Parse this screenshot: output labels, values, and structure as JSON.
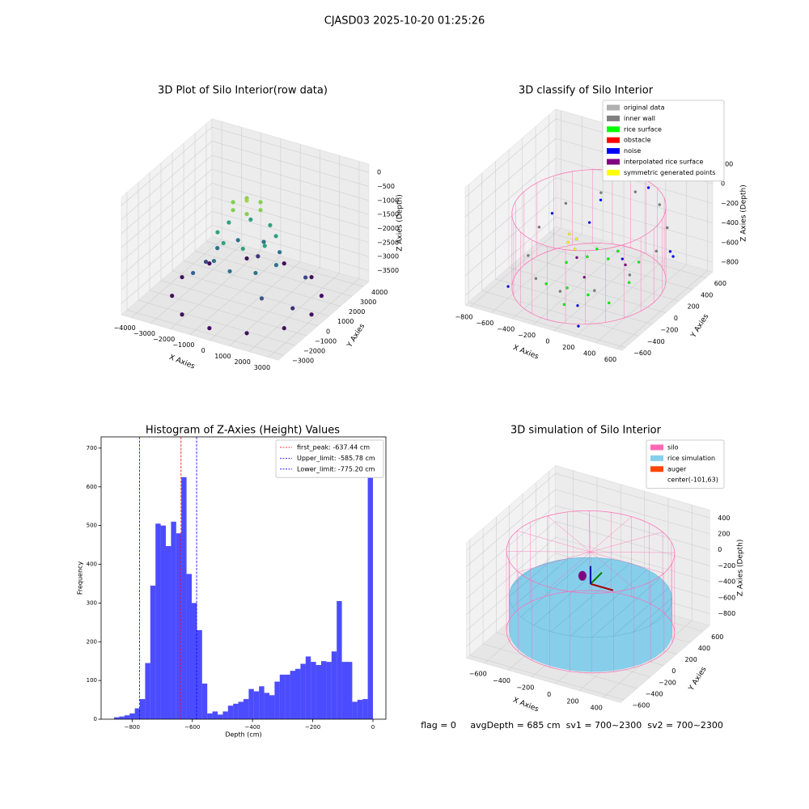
{
  "suptitle": "CJASD03 2025-10-20 01:25:26",
  "chart_data": [
    {
      "type": "scatter3d",
      "title": "3D Plot of Silo Interior(row data)",
      "xlabel": "X Axies",
      "ylabel": "Y Axies",
      "zlabel": "Z Axies (Depth)",
      "xlim": [
        -4500,
        3500
      ],
      "ylim": [
        -3500,
        4500
      ],
      "zlim": [
        -3900,
        300
      ],
      "xticks": [
        {
          "value": -4000,
          "label": "−4000"
        },
        {
          "value": -3000,
          "label": "−3000"
        },
        {
          "value": -2000,
          "label": "−2000"
        },
        {
          "value": -1000,
          "label": "−1000"
        },
        0,
        1000,
        2000,
        3000
      ],
      "yticks": [
        {
          "value": -3000,
          "label": "−3000"
        },
        {
          "value": -2000,
          "label": "−2000"
        },
        {
          "value": -1000,
          "label": "−1000"
        },
        0,
        1000,
        2000,
        3000,
        4000
      ],
      "zticks": [
        0,
        {
          "value": -500,
          "label": "−500"
        },
        {
          "value": -1000,
          "label": "−1000"
        },
        {
          "value": -1500,
          "label": "−1500"
        },
        {
          "value": -2000,
          "label": "−2000"
        },
        {
          "value": -2500,
          "label": "−2500"
        },
        {
          "value": -3000,
          "label": "−3000"
        },
        {
          "value": -3500,
          "label": "−3500"
        }
      ],
      "cmap": "viridis",
      "series": [
        {
          "x": [
            3000,
            2558,
            1350,
            -300,
            -1950,
            -3158,
            -3600,
            -3158,
            -1950,
            -300,
            1350,
            2558,
            1200,
            761,
            -300,
            -1361,
            -1800,
            -1361,
            -300,
            761,
            901,
            197,
            -797,
            -1501,
            -1501,
            -797,
            197,
            901,
            400,
            50,
            -650,
            -1000,
            -650,
            50,
            -300,
            2000,
            -2500,
            1500,
            -1000,
            2500,
            -2000
          ],
          "y": [
            300,
            1950,
            3158,
            3600,
            3158,
            1950,
            300,
            -1350,
            -2558,
            -3000,
            -2558,
            -1350,
            300,
            1361,
            1800,
            1361,
            300,
            -761,
            -1200,
            -761,
            797,
            1501,
            1501,
            797,
            -197,
            -901,
            -901,
            -197,
            300,
            906,
            906,
            300,
            -306,
            -306,
            300,
            1500,
            500,
            -1500,
            2500,
            -500,
            -1500
          ],
          "z": [
            -3700,
            -3700,
            -3700,
            -3700,
            -3700,
            -3700,
            -3700,
            -3700,
            -3700,
            -3700,
            -3700,
            -3700,
            -2300,
            -2300,
            -2300,
            -2300,
            -2300,
            -2300,
            -2300,
            -2300,
            -1500,
            -1500,
            -1500,
            -1500,
            -1500,
            -1500,
            -1500,
            -1500,
            -500,
            -500,
            -500,
            -500,
            -500,
            -500,
            -300,
            -3000,
            -3000,
            -2800,
            -3200,
            -3300,
            -2600
          ]
        }
      ]
    },
    {
      "type": "scatter3d",
      "title": "3D classify of Silo Interior",
      "xlabel": "X Axies",
      "ylabel": "Y Axies",
      "zlabel": "Z Axies (Depth)",
      "xlim": [
        -850,
        650
      ],
      "ylim": [
        -650,
        700
      ],
      "zlim": [
        -900,
        300
      ],
      "xticks": [
        {
          "value": -800,
          "label": "−800"
        },
        {
          "value": -600,
          "label": "−600"
        },
        {
          "value": -400,
          "label": "−400"
        },
        {
          "value": -200,
          "label": "−200"
        },
        0,
        200,
        400,
        600
      ],
      "yticks": [
        {
          "value": -600,
          "label": "−600"
        },
        {
          "value": -400,
          "label": "−400"
        },
        {
          "value": -200,
          "label": "−200"
        },
        0,
        200,
        400,
        600
      ],
      "zticks": [
        {
          "value": -800,
          "label": "−800"
        },
        {
          "value": -600,
          "label": "−600"
        },
        {
          "value": -400,
          "label": "−400"
        },
        {
          "value": -200,
          "label": "−200"
        },
        0,
        200
      ],
      "legend": "upper right",
      "silo": {
        "color": "#ff69b4",
        "radius": 620,
        "bottom": -850,
        "top": -100
      },
      "series": [
        {
          "name": "original data",
          "color": "#b0b0b0"
        },
        {
          "name": "inner wall",
          "color": "#808080",
          "x": [
            560,
            485,
            280,
            0,
            -280,
            -485,
            -560,
            -485,
            -280,
            0,
            280,
            485
          ],
          "y": [
            0,
            280,
            485,
            560,
            485,
            280,
            0,
            -280,
            -485,
            -560,
            -485,
            -280
          ],
          "z": [
            -300,
            -250,
            -200,
            -200,
            -250,
            -300,
            -400,
            -500,
            -550,
            -550,
            -500,
            -400
          ]
        },
        {
          "name": "rice surface",
          "color": "#00ff00",
          "x": [
            -300,
            -100,
            100,
            300,
            -300,
            -100,
            100,
            300,
            -200,
            0,
            200,
            0
          ],
          "y": [
            -300,
            -300,
            -300,
            -300,
            0,
            0,
            0,
            0,
            300,
            300,
            300,
            -500
          ],
          "z": [
            -720,
            -700,
            -710,
            -730,
            -680,
            -560,
            -520,
            -700,
            -690,
            -650,
            -700,
            -720
          ]
        },
        {
          "name": "obstacle",
          "color": "#ff0000"
        },
        {
          "name": "noise",
          "color": "#0000ff",
          "x": [
            -600,
            -400,
            200,
            500,
            -100,
            300,
            -500,
            100,
            0,
            400
          ],
          "y": [
            -400,
            500,
            -600,
            300,
            200,
            -100,
            100,
            600,
            -300,
            500
          ],
          "z": [
            -780,
            -600,
            -820,
            -500,
            -100,
            -400,
            -300,
            -150,
            -850,
            -700
          ]
        },
        {
          "name": "interpolated rice surface",
          "color": "#800080",
          "x": [
            -200,
            0,
            200
          ],
          "y": [
            0,
            -200,
            100
          ],
          "z": [
            -600,
            -620,
            -610
          ]
        },
        {
          "name": "symmetric generated points",
          "color": "#ffff00",
          "x": [
            -350,
            -300,
            -250,
            -400
          ],
          "y": [
            100,
            150,
            50,
            200
          ],
          "z": [
            -550,
            -530,
            -560,
            -540
          ]
        }
      ]
    },
    {
      "type": "histogram",
      "title": "Histogram of Z-Axies (Height) Values",
      "xlabel": "Depth (cm)",
      "ylabel": "Frequency",
      "color": "#0000ff",
      "xlim": [
        -903,
        43
      ],
      "ylim": [
        0,
        729
      ],
      "xticks": [
        {
          "value": -800,
          "label": "−800"
        },
        {
          "value": -600,
          "label": "−600"
        },
        {
          "value": -400,
          "label": "−400"
        },
        {
          "value": -200,
          "label": "−200"
        },
        0
      ],
      "yticks": [
        0,
        100,
        200,
        300,
        400,
        500,
        600,
        700
      ],
      "bins": [
        -860,
        -842.8,
        -825.6,
        -808.4,
        -791.2,
        -774,
        -756.8,
        -739.6,
        -722.4,
        -705.2,
        -688,
        -670.8,
        -653.6,
        -636.4,
        -619.2,
        -602,
        -584.8,
        -567.6,
        -550.4,
        -533.2,
        -516,
        -498.8,
        -481.6,
        -464.4,
        -447.2,
        -430,
        -412.8,
        -395.6,
        -378.4,
        -361.2,
        -344,
        -326.8,
        -309.6,
        -292.4,
        -275.2,
        -258,
        -240.8,
        -223.6,
        -206.4,
        -189.2,
        -172,
        -154.8,
        -137.6,
        -120.4,
        -103.2,
        -86,
        -68.8,
        -51.6,
        -34.4,
        -17.2,
        0
      ],
      "values": [
        5,
        7,
        10,
        15,
        28,
        52,
        145,
        345,
        505,
        500,
        447,
        510,
        480,
        625,
        375,
        300,
        230,
        92,
        15,
        20,
        12,
        20,
        35,
        40,
        45,
        52,
        78,
        72,
        85,
        68,
        62,
        97,
        115,
        115,
        125,
        130,
        143,
        162,
        148,
        140,
        150,
        148,
        175,
        305,
        148,
        148,
        45,
        50,
        52,
        690
      ],
      "legend": "upper right",
      "vlines": [
        {
          "name": "first_peak: -637.44 cm",
          "value": -637.44,
          "color": "#ff0000"
        },
        {
          "name": "Upper_limit: -585.78 cm",
          "value": -585.78,
          "color": "#0000ff"
        },
        {
          "name": "Lower_limit: -775.20 cm",
          "value": -775.2,
          "color": "#0000ff"
        }
      ]
    },
    {
      "type": "surface3d",
      "title": "3D simulation of Silo Interior",
      "xlabel": "X Axies",
      "ylabel": "Y Axies",
      "zlabel": "Z Axies (Depth)",
      "xlim": [
        -750,
        550
      ],
      "ylim": [
        -650,
        700
      ],
      "zlim": [
        -950,
        500
      ],
      "xticks": [
        {
          "value": -600,
          "label": "−600"
        },
        {
          "value": -400,
          "label": "−400"
        },
        {
          "value": -200,
          "label": "−200"
        },
        0,
        200,
        400
      ],
      "yticks": [
        {
          "value": -600,
          "label": "−600"
        },
        {
          "value": -400,
          "label": "−400"
        },
        {
          "value": -200,
          "label": "−200"
        },
        0,
        200,
        400,
        600
      ],
      "zticks": [
        {
          "value": -800,
          "label": "−800"
        },
        {
          "value": -600,
          "label": "−600"
        },
        {
          "value": -400,
          "label": "−400"
        },
        {
          "value": -200,
          "label": "−200"
        },
        0,
        200,
        400
      ],
      "legend": "upper right",
      "series": [
        {
          "name": "silo",
          "color": "#ff69b4",
          "shape": "wire",
          "radius": 620,
          "bottom": -850,
          "top": 150
        },
        {
          "name": "rice simulation",
          "color": "#87ceeb",
          "shape": "solid",
          "radius": 600,
          "bottom": -850,
          "top": -420
        },
        {
          "name": "auger",
          "color": "#ff4500"
        },
        {
          "name": "center(-101,63)",
          "color": "#ffffff",
          "x": -101,
          "y": 63
        }
      ],
      "caption": "flag = 0     avgDepth = 685 cm  sv1 = 700~2300  sv2 = 700~2300"
    }
  ]
}
